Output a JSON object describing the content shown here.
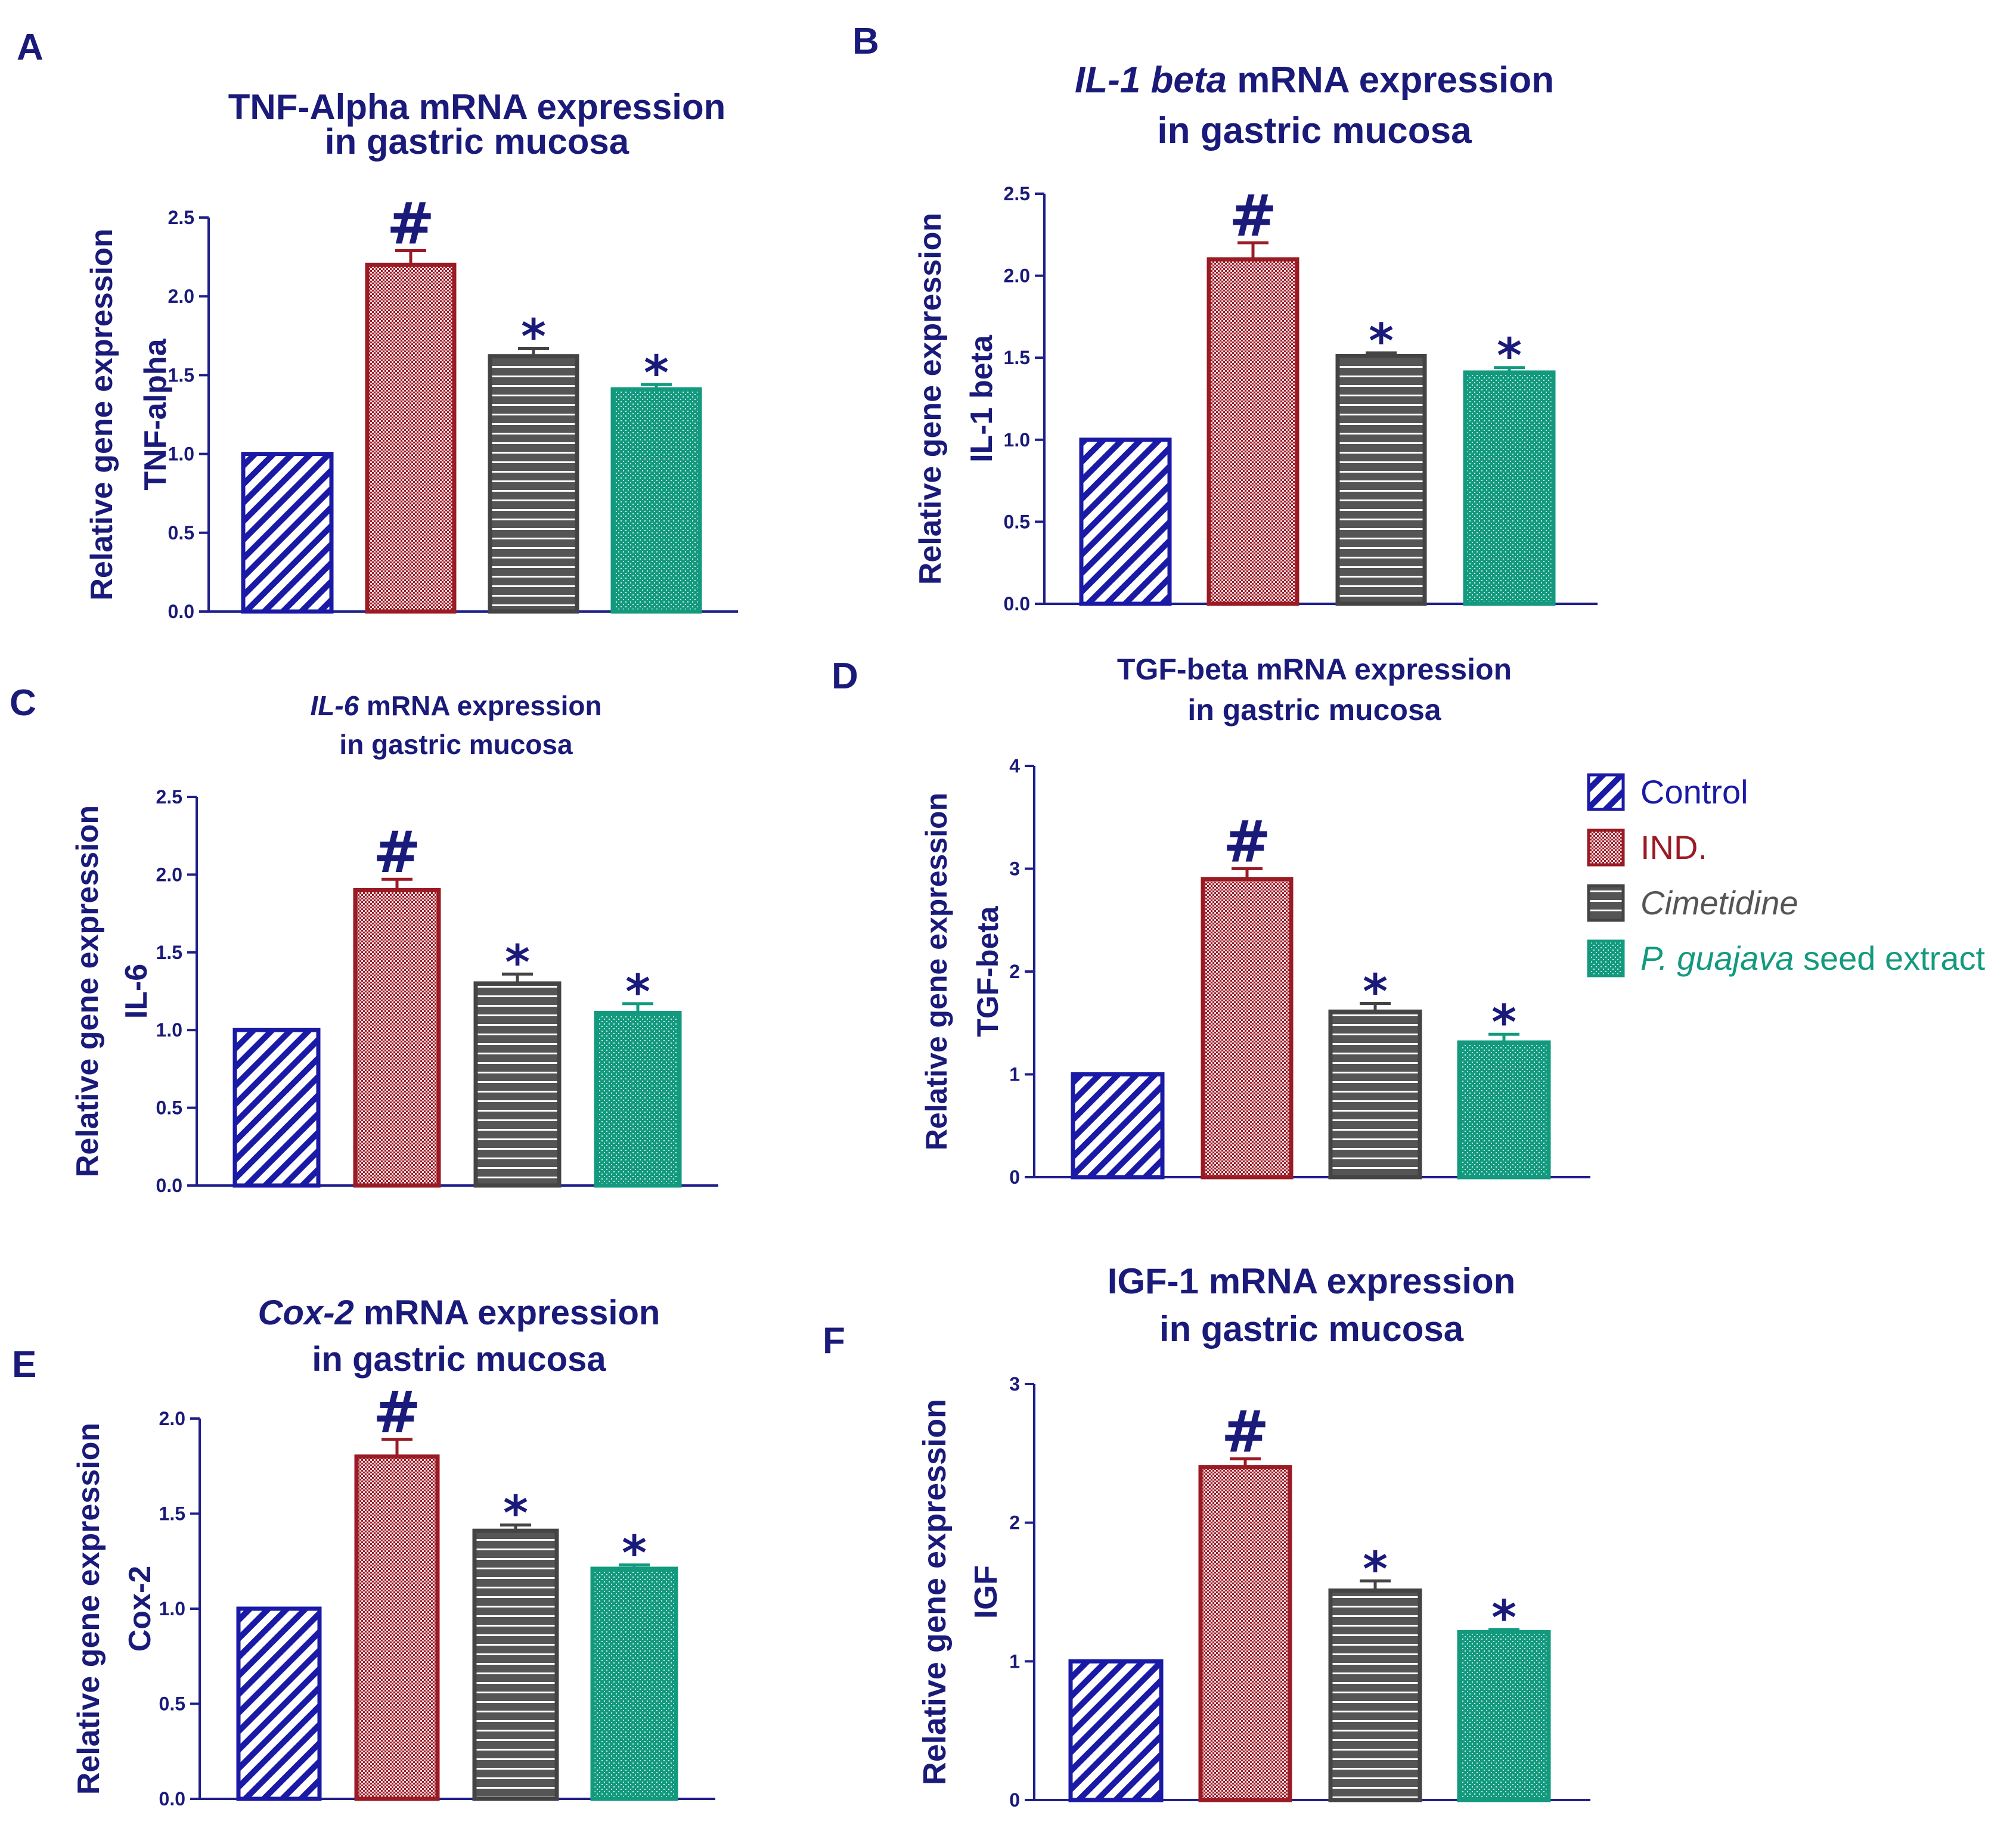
{
  "colors": {
    "control": "#1a1aa6",
    "ind": "#9b1b24",
    "cimetidine": "#555555",
    "guajava": "#139a7e",
    "axis": "#1f1f8a",
    "text": "#1a1a7a"
  },
  "legend": {
    "items": [
      {
        "key": "control",
        "label": "Control",
        "italic_prefix": "",
        "rest": "Control"
      },
      {
        "key": "ind",
        "label": "IND.",
        "italic_prefix": "",
        "rest": "IND."
      },
      {
        "key": "cimetidine",
        "label": "Cimetidine",
        "italic_prefix": "Cimetidine",
        "rest": ""
      },
      {
        "key": "guajava",
        "label": "P. guajava seed extract",
        "italic_prefix": "P. guajava",
        "rest": " seed extract"
      }
    ]
  },
  "chart_data": [
    {
      "panel": "A",
      "type": "bar",
      "title_lines": [
        {
          "italic": "",
          "normal": "TNF-Alpha mRNA expression"
        },
        {
          "italic": "",
          "normal": "in gastric mucosa"
        }
      ],
      "ylabel_lines": [
        "Relative gene expression",
        "TNF-alpha"
      ],
      "categories": [
        "Control",
        "IND.",
        "Cimetidine",
        "P. guajava seed extract"
      ],
      "values": [
        1.0,
        2.2,
        1.62,
        1.41
      ],
      "errors": [
        0,
        0.09,
        0.05,
        0.03
      ],
      "markers": [
        "",
        "#",
        "*",
        "*"
      ],
      "ylim": [
        0,
        2.5
      ],
      "yticks": [
        0.0,
        0.5,
        1.0,
        1.5,
        2.0,
        2.5
      ],
      "ytick_labels": [
        "0.0",
        "0.5",
        "1.0",
        "1.5",
        "2.0",
        "2.5"
      ]
    },
    {
      "panel": "B",
      "type": "bar",
      "title_lines": [
        {
          "italic": "IL-1 beta",
          "normal": " mRNA expression"
        },
        {
          "italic": "",
          "normal": "in gastric mucosa"
        }
      ],
      "ylabel_lines": [
        "Relative gene expression",
        "IL-1 beta"
      ],
      "categories": [
        "Control",
        "IND.",
        "Cimetidine",
        "P. guajava seed extract"
      ],
      "values": [
        1.0,
        2.1,
        1.51,
        1.41
      ],
      "errors": [
        0,
        0.1,
        0.02,
        0.03
      ],
      "markers": [
        "",
        "#",
        "*",
        "*"
      ],
      "ylim": [
        0,
        2.5
      ],
      "yticks": [
        0.0,
        0.5,
        1.0,
        1.5,
        2.0,
        2.5
      ],
      "ytick_labels": [
        "0.0",
        "0.5",
        "1.0",
        "1.5",
        "2.0",
        "2.5"
      ]
    },
    {
      "panel": "C",
      "type": "bar",
      "title_lines": [
        {
          "italic": "IL-6",
          "normal": " mRNA expression"
        },
        {
          "italic": "",
          "normal": "in gastric mucosa"
        }
      ],
      "ylabel_lines": [
        "Relative gene expression",
        "IL-6"
      ],
      "categories": [
        "Control",
        "IND.",
        "Cimetidine",
        "P. guajava seed extract"
      ],
      "values": [
        1.0,
        1.9,
        1.3,
        1.11
      ],
      "errors": [
        0,
        0.07,
        0.06,
        0.06
      ],
      "markers": [
        "",
        "#",
        "*",
        "*"
      ],
      "ylim": [
        0,
        2.5
      ],
      "yticks": [
        0.0,
        0.5,
        1.0,
        1.5,
        2.0,
        2.5
      ],
      "ytick_labels": [
        "0.0",
        "0.5",
        "1.0",
        "1.5",
        "2.0",
        "2.5"
      ]
    },
    {
      "panel": "D",
      "type": "bar",
      "title_lines": [
        {
          "italic": "",
          "normal": "TGF-beta mRNA expression"
        },
        {
          "italic": "",
          "normal": "in gastric mucosa"
        }
      ],
      "ylabel_lines": [
        "Relative gene expression",
        "TGF-beta"
      ],
      "categories": [
        "Control",
        "IND.",
        "Cimetidine",
        "P. guajava seed extract"
      ],
      "values": [
        1.0,
        2.9,
        1.61,
        1.31
      ],
      "errors": [
        0,
        0.1,
        0.08,
        0.08
      ],
      "markers": [
        "",
        "#",
        "*",
        "*"
      ],
      "ylim": [
        0,
        4
      ],
      "yticks": [
        0,
        1,
        2,
        3,
        4
      ],
      "ytick_labels": [
        "0",
        "1",
        "2",
        "3",
        "4"
      ]
    },
    {
      "panel": "E",
      "type": "bar",
      "title_lines": [
        {
          "italic": "Cox-2",
          "normal": " mRNA expression"
        },
        {
          "italic": "",
          "normal": "in gastric mucosa"
        }
      ],
      "ylabel_lines": [
        "Relative gene expression",
        "Cox-2"
      ],
      "categories": [
        "Control",
        "IND.",
        "Cimetidine",
        "P. guajava seed extract"
      ],
      "values": [
        1.0,
        1.8,
        1.41,
        1.21
      ],
      "errors": [
        0,
        0.09,
        0.03,
        0.02
      ],
      "markers": [
        "",
        "#",
        "*",
        "*"
      ],
      "ylim": [
        0,
        2.0
      ],
      "yticks": [
        0.0,
        0.5,
        1.0,
        1.5,
        2.0
      ],
      "ytick_labels": [
        "0.0",
        "0.5",
        "1.0",
        "1.5",
        "2.0"
      ]
    },
    {
      "panel": "F",
      "type": "bar",
      "title_lines": [
        {
          "italic": "",
          "normal": "IGF-1 mRNA expression"
        },
        {
          "italic": "",
          "normal": "in gastric mucosa"
        }
      ],
      "ylabel_lines": [
        "Relative gene expression",
        "IGF"
      ],
      "categories": [
        "Control",
        "IND.",
        "Cimetidine",
        "P. guajava seed extract"
      ],
      "values": [
        1.0,
        2.4,
        1.51,
        1.21
      ],
      "errors": [
        0,
        0.06,
        0.07,
        0.02
      ],
      "markers": [
        "",
        "#",
        "*",
        "*"
      ],
      "ylim": [
        0,
        3
      ],
      "yticks": [
        0,
        1,
        2,
        3
      ],
      "ytick_labels": [
        "0",
        "1",
        "2",
        "3"
      ]
    }
  ]
}
